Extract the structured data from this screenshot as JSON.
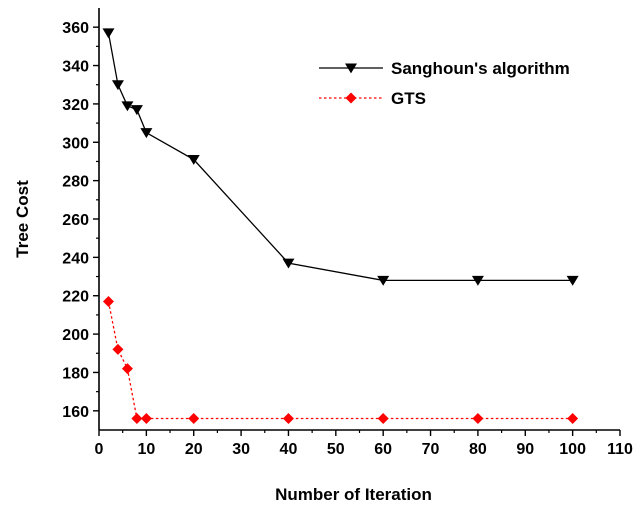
{
  "chart_data": {
    "type": "line",
    "title": "",
    "xlabel": "Number of Iteration",
    "ylabel": "Tree Cost",
    "xlim": [
      0,
      110
    ],
    "ylim": [
      150,
      370
    ],
    "xticks": [
      0,
      10,
      20,
      30,
      40,
      50,
      60,
      70,
      80,
      90,
      100,
      110
    ],
    "yticks": [
      160,
      180,
      200,
      220,
      240,
      260,
      280,
      300,
      320,
      340,
      360
    ],
    "grid": false,
    "legend_position": "top-right",
    "series": [
      {
        "name": "Sanghoun's algorithm",
        "color": "#000000",
        "line_style": "solid",
        "marker": "down-triangle",
        "x": [
          2,
          4,
          6,
          8,
          10,
          20,
          40,
          60,
          80,
          100
        ],
        "y": [
          357,
          330,
          319,
          317,
          305,
          291,
          237,
          228,
          228,
          228
        ]
      },
      {
        "name": "GTS",
        "color": "#ff0000",
        "line_style": "dotted",
        "marker": "diamond",
        "x": [
          2,
          4,
          6,
          8,
          10,
          20,
          40,
          60,
          80,
          100
        ],
        "y": [
          217,
          192,
          182,
          156,
          156,
          156,
          156,
          156,
          156,
          156
        ]
      }
    ]
  }
}
